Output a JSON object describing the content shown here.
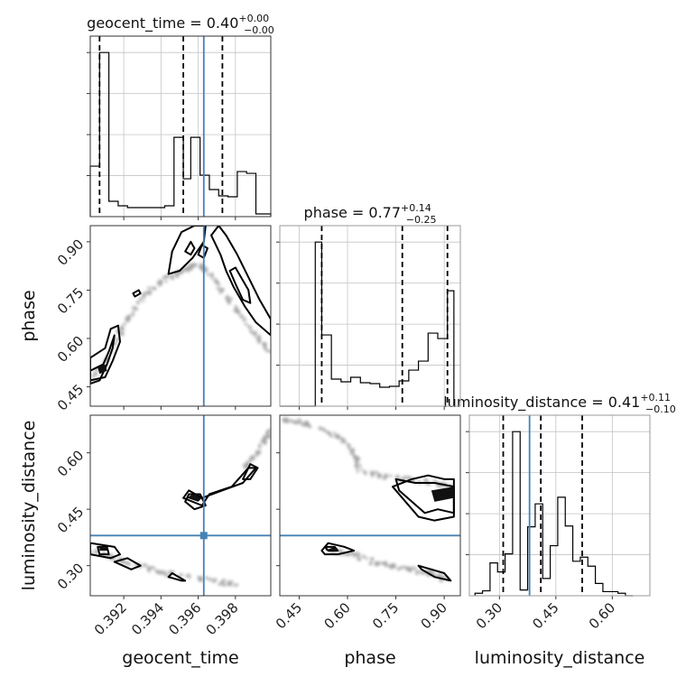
{
  "chart_data": {
    "type": "corner",
    "parameters": [
      {
        "name": "geocent_time",
        "title": {
          "label": "geocent_time = ",
          "median": "0.40",
          "plus": "+0.00",
          "minus": "−0.00"
        },
        "ticks": [
          "0.392",
          "0.394",
          "0.396",
          "0.398"
        ],
        "tick_values": [
          0.392,
          0.394,
          0.396,
          0.398
        ],
        "range": [
          0.3902,
          0.3999
        ],
        "truth": 0.3963,
        "quantiles": [
          0.3907,
          0.3952,
          0.3973
        ],
        "hist_edges": [
          0.3902,
          0.3907,
          0.3912,
          0.3917,
          0.3922,
          0.3927,
          0.3932,
          0.3937,
          0.3942,
          0.3947,
          0.3952,
          0.3956,
          0.3961,
          0.3966,
          0.3971,
          0.3976,
          0.3981,
          0.3986,
          0.3991,
          0.3996,
          0.3999
        ],
        "hist_counts": [
          56,
          182,
          17,
          12,
          10,
          10,
          10,
          10,
          12,
          88,
          42,
          88,
          46,
          30,
          23,
          22,
          50,
          48,
          3,
          3
        ]
      },
      {
        "name": "phase",
        "title": {
          "label": "phase = ",
          "median": "0.77",
          "plus": "+0.14",
          "minus": "−0.25"
        },
        "ticks": [
          "0.45",
          "0.60",
          "0.75",
          "0.90"
        ],
        "tick_values": [
          0.45,
          0.6,
          0.75,
          0.9
        ],
        "range": [
          0.39,
          0.95
        ],
        "quantiles": [
          0.52,
          0.77,
          0.91
        ],
        "hist_edges": [
          0.39,
          0.5,
          0.52,
          0.55,
          0.58,
          0.61,
          0.64,
          0.67,
          0.7,
          0.73,
          0.76,
          0.79,
          0.82,
          0.85,
          0.88,
          0.91,
          0.93
        ],
        "hist_counts": [
          0,
          182,
          79,
          30,
          27,
          32,
          26,
          25,
          21,
          22,
          28,
          40,
          50,
          81,
          75,
          128
        ]
      },
      {
        "name": "luminosity_distance",
        "title": {
          "label": "luminosity_distance = ",
          "median": "0.41",
          "plus": "+0.11",
          "minus": "−0.10"
        },
        "ticks": [
          "0.30",
          "0.45",
          "0.60"
        ],
        "tick_values": [
          0.3,
          0.45,
          0.6
        ],
        "range": [
          0.22,
          0.7
        ],
        "truth": 0.38,
        "quantiles": [
          0.31,
          0.41,
          0.52
        ],
        "hist_edges": [
          0.235,
          0.255,
          0.275,
          0.295,
          0.315,
          0.335,
          0.355,
          0.375,
          0.395,
          0.415,
          0.435,
          0.455,
          0.475,
          0.495,
          0.515,
          0.535,
          0.555,
          0.575,
          0.595,
          0.615,
          0.635,
          0.655
        ],
        "hist_counts": [
          3,
          6,
          40,
          29,
          51,
          200,
          7,
          84,
          112,
          21,
          61,
          120,
          85,
          42,
          47,
          36,
          15,
          5,
          5,
          3,
          0
        ]
      }
    ],
    "contours_2d": [
      {
        "x_param": "geocent_time",
        "y_param": "phase",
        "loops": [
          [
            [
              0.3902,
              0.5
            ],
            [
              0.3909,
              0.52
            ],
            [
              0.3912,
              0.56
            ],
            [
              0.3915,
              0.61
            ],
            [
              0.3914,
              0.57
            ],
            [
              0.3911,
              0.52
            ],
            [
              0.3907,
              0.47
            ],
            [
              0.3902,
              0.46
            ]
          ],
          [
            [
              0.3902,
              0.54
            ],
            [
              0.391,
              0.57
            ],
            [
              0.3913,
              0.63
            ],
            [
              0.3917,
              0.64
            ],
            [
              0.3918,
              0.59
            ],
            [
              0.3914,
              0.53
            ],
            [
              0.391,
              0.48
            ],
            [
              0.3902,
              0.47
            ]
          ],
          [
            [
              0.3944,
              0.8
            ],
            [
              0.3946,
              0.87
            ],
            [
              0.3951,
              0.93
            ],
            [
              0.3958,
              0.95
            ],
            [
              0.3964,
              0.95
            ],
            [
              0.3963,
              0.9
            ],
            [
              0.3957,
              0.85
            ],
            [
              0.395,
              0.81
            ]
          ],
          [
            [
              0.3953,
              0.87
            ],
            [
              0.3956,
              0.9
            ],
            [
              0.3958,
              0.88
            ],
            [
              0.3956,
              0.86
            ]
          ],
          [
            [
              0.396,
              0.86
            ],
            [
              0.3962,
              0.89
            ],
            [
              0.3965,
              0.88
            ],
            [
              0.3963,
              0.85
            ]
          ],
          [
            [
              0.3967,
              0.92
            ],
            [
              0.3972,
              0.86
            ],
            [
              0.3975,
              0.81
            ],
            [
              0.3979,
              0.76
            ],
            [
              0.3985,
              0.7
            ],
            [
              0.3991,
              0.65
            ],
            [
              0.3999,
              0.61
            ],
            [
              0.3999,
              0.66
            ],
            [
              0.3993,
              0.72
            ],
            [
              0.3987,
              0.79
            ],
            [
              0.3981,
              0.86
            ],
            [
              0.3975,
              0.92
            ],
            [
              0.3971,
              0.95
            ]
          ],
          [
            [
              0.398,
              0.82
            ],
            [
              0.3983,
              0.79
            ],
            [
              0.3987,
              0.75
            ],
            [
              0.3988,
              0.71
            ],
            [
              0.3984,
              0.72
            ],
            [
              0.398,
              0.77
            ],
            [
              0.3977,
              0.81
            ]
          ],
          [
            [
              0.3925,
              0.74
            ],
            [
              0.3928,
              0.75
            ],
            [
              0.3929,
              0.74
            ],
            [
              0.3926,
              0.73
            ]
          ]
        ],
        "filled": [
          [
            [
              0.3906,
              0.51
            ],
            [
              0.391,
              0.52
            ],
            [
              0.3911,
              0.5
            ],
            [
              0.3907,
              0.49
            ]
          ]
        ]
      },
      {
        "x_param": "geocent_time",
        "y_param": "luminosity_distance",
        "loops": [
          [
            [
              0.3902,
              0.36
            ],
            [
              0.3915,
              0.35
            ],
            [
              0.3918,
              0.33
            ],
            [
              0.3913,
              0.32
            ],
            [
              0.3902,
              0.33
            ]
          ],
          [
            [
              0.3906,
              0.35
            ],
            [
              0.3911,
              0.35
            ],
            [
              0.3912,
              0.33
            ],
            [
              0.3907,
              0.33
            ]
          ],
          [
            [
              0.3915,
              0.31
            ],
            [
              0.3924,
              0.29
            ],
            [
              0.3929,
              0.3
            ],
            [
              0.3922,
              0.32
            ]
          ],
          [
            [
              0.3944,
              0.27
            ],
            [
              0.3951,
              0.26
            ],
            [
              0.3953,
              0.26
            ],
            [
              0.3946,
              0.28
            ]
          ],
          [
            [
              0.3952,
              0.48
            ],
            [
              0.3962,
              0.46
            ],
            [
              0.3966,
              0.49
            ],
            [
              0.3978,
              0.51
            ],
            [
              0.3987,
              0.56
            ],
            [
              0.3991,
              0.56
            ],
            [
              0.3984,
              0.52
            ],
            [
              0.3973,
              0.5
            ],
            [
              0.3962,
              0.48
            ],
            [
              0.3955,
              0.5
            ]
          ],
          [
            [
              0.3953,
              0.47
            ],
            [
              0.3958,
              0.45
            ],
            [
              0.3964,
              0.46
            ],
            [
              0.3961,
              0.49
            ],
            [
              0.3955,
              0.49
            ]
          ],
          [
            [
              0.3984,
              0.53
            ],
            [
              0.3988,
              0.57
            ],
            [
              0.3992,
              0.56
            ],
            [
              0.3988,
              0.53
            ]
          ]
        ],
        "filled": [
          [
            [
              0.3907,
              0.35
            ],
            [
              0.3911,
              0.35
            ],
            [
              0.3911,
              0.34
            ],
            [
              0.3907,
              0.34
            ]
          ],
          [
            [
              0.3954,
              0.48
            ],
            [
              0.396,
              0.47
            ],
            [
              0.3962,
              0.48
            ],
            [
              0.3957,
              0.49
            ]
          ]
        ]
      },
      {
        "x_param": "phase",
        "y_param": "luminosity_distance",
        "loops": [
          [
            [
              0.52,
              0.34
            ],
            [
              0.54,
              0.36
            ],
            [
              0.59,
              0.35
            ],
            [
              0.62,
              0.34
            ],
            [
              0.57,
              0.33
            ],
            [
              0.53,
              0.33
            ]
          ],
          [
            [
              0.53,
              0.35
            ],
            [
              0.56,
              0.35
            ],
            [
              0.57,
              0.34
            ],
            [
              0.54,
              0.34
            ]
          ],
          [
            [
              0.82,
              0.3
            ],
            [
              0.86,
              0.29
            ],
            [
              0.9,
              0.28
            ],
            [
              0.92,
              0.26
            ],
            [
              0.87,
              0.27
            ],
            [
              0.83,
              0.29
            ]
          ],
          [
            [
              0.75,
              0.53
            ],
            [
              0.81,
              0.52
            ],
            [
              0.87,
              0.52
            ],
            [
              0.93,
              0.51
            ],
            [
              0.93,
              0.44
            ],
            [
              0.88,
              0.45
            ],
            [
              0.84,
              0.44
            ],
            [
              0.8,
              0.47
            ],
            [
              0.76,
              0.5
            ]
          ],
          [
            [
              0.8,
              0.53
            ],
            [
              0.85,
              0.54
            ],
            [
              0.9,
              0.53
            ],
            [
              0.93,
              0.53
            ],
            [
              0.93,
              0.43
            ],
            [
              0.87,
              0.42
            ],
            [
              0.82,
              0.43
            ],
            [
              0.78,
              0.47
            ],
            [
              0.74,
              0.51
            ]
          ]
        ],
        "filled": [
          [
            [
              0.53,
              0.34
            ],
            [
              0.56,
              0.35
            ],
            [
              0.57,
              0.34
            ],
            [
              0.54,
              0.34
            ]
          ],
          [
            [
              0.86,
              0.5
            ],
            [
              0.93,
              0.51
            ],
            [
              0.93,
              0.48
            ],
            [
              0.87,
              0.47
            ]
          ]
        ]
      }
    ],
    "scatter_trails_2d": [
      {
        "x_param": "geocent_time",
        "y_param": "phase",
        "path": [
          [
            0.3902,
            0.47
          ],
          [
            0.3912,
            0.55
          ],
          [
            0.392,
            0.64
          ],
          [
            0.3928,
            0.71
          ],
          [
            0.3936,
            0.76
          ],
          [
            0.3944,
            0.79
          ],
          [
            0.3952,
            0.81
          ],
          [
            0.396,
            0.83
          ],
          [
            0.3966,
            0.8
          ],
          [
            0.3974,
            0.74
          ],
          [
            0.3982,
            0.68
          ],
          [
            0.399,
            0.62
          ],
          [
            0.3999,
            0.55
          ]
        ]
      },
      {
        "x_param": "geocent_time",
        "y_param": "luminosity_distance",
        "path": [
          [
            0.3902,
            0.34
          ],
          [
            0.3915,
            0.32
          ],
          [
            0.3928,
            0.3
          ],
          [
            0.3942,
            0.28
          ],
          [
            0.3955,
            0.27
          ],
          [
            0.3968,
            0.26
          ],
          [
            0.3981,
            0.25
          ]
        ]
      },
      {
        "x_param": "geocent_time",
        "y_param": "luminosity_distance",
        "path": [
          [
            0.3985,
            0.56
          ],
          [
            0.399,
            0.59
          ],
          [
            0.3995,
            0.63
          ],
          [
            0.3999,
            0.66
          ]
        ]
      },
      {
        "x_param": "phase",
        "y_param": "luminosity_distance",
        "path": [
          [
            0.4,
            0.69
          ],
          [
            0.46,
            0.68
          ],
          [
            0.52,
            0.66
          ],
          [
            0.58,
            0.64
          ],
          [
            0.62,
            0.6
          ],
          [
            0.64,
            0.55
          ],
          [
            0.7,
            0.54
          ],
          [
            0.78,
            0.53
          ],
          [
            0.86,
            0.52
          ],
          [
            0.93,
            0.51
          ]
        ]
      },
      {
        "x_param": "phase",
        "y_param": "luminosity_distance",
        "path": [
          [
            0.55,
            0.34
          ],
          [
            0.62,
            0.33
          ],
          [
            0.68,
            0.31
          ],
          [
            0.74,
            0.3
          ],
          [
            0.8,
            0.29
          ],
          [
            0.86,
            0.28
          ],
          [
            0.91,
            0.26
          ]
        ]
      }
    ],
    "truth_marker_color": "#4682b4",
    "grid": true,
    "legend": "none"
  }
}
